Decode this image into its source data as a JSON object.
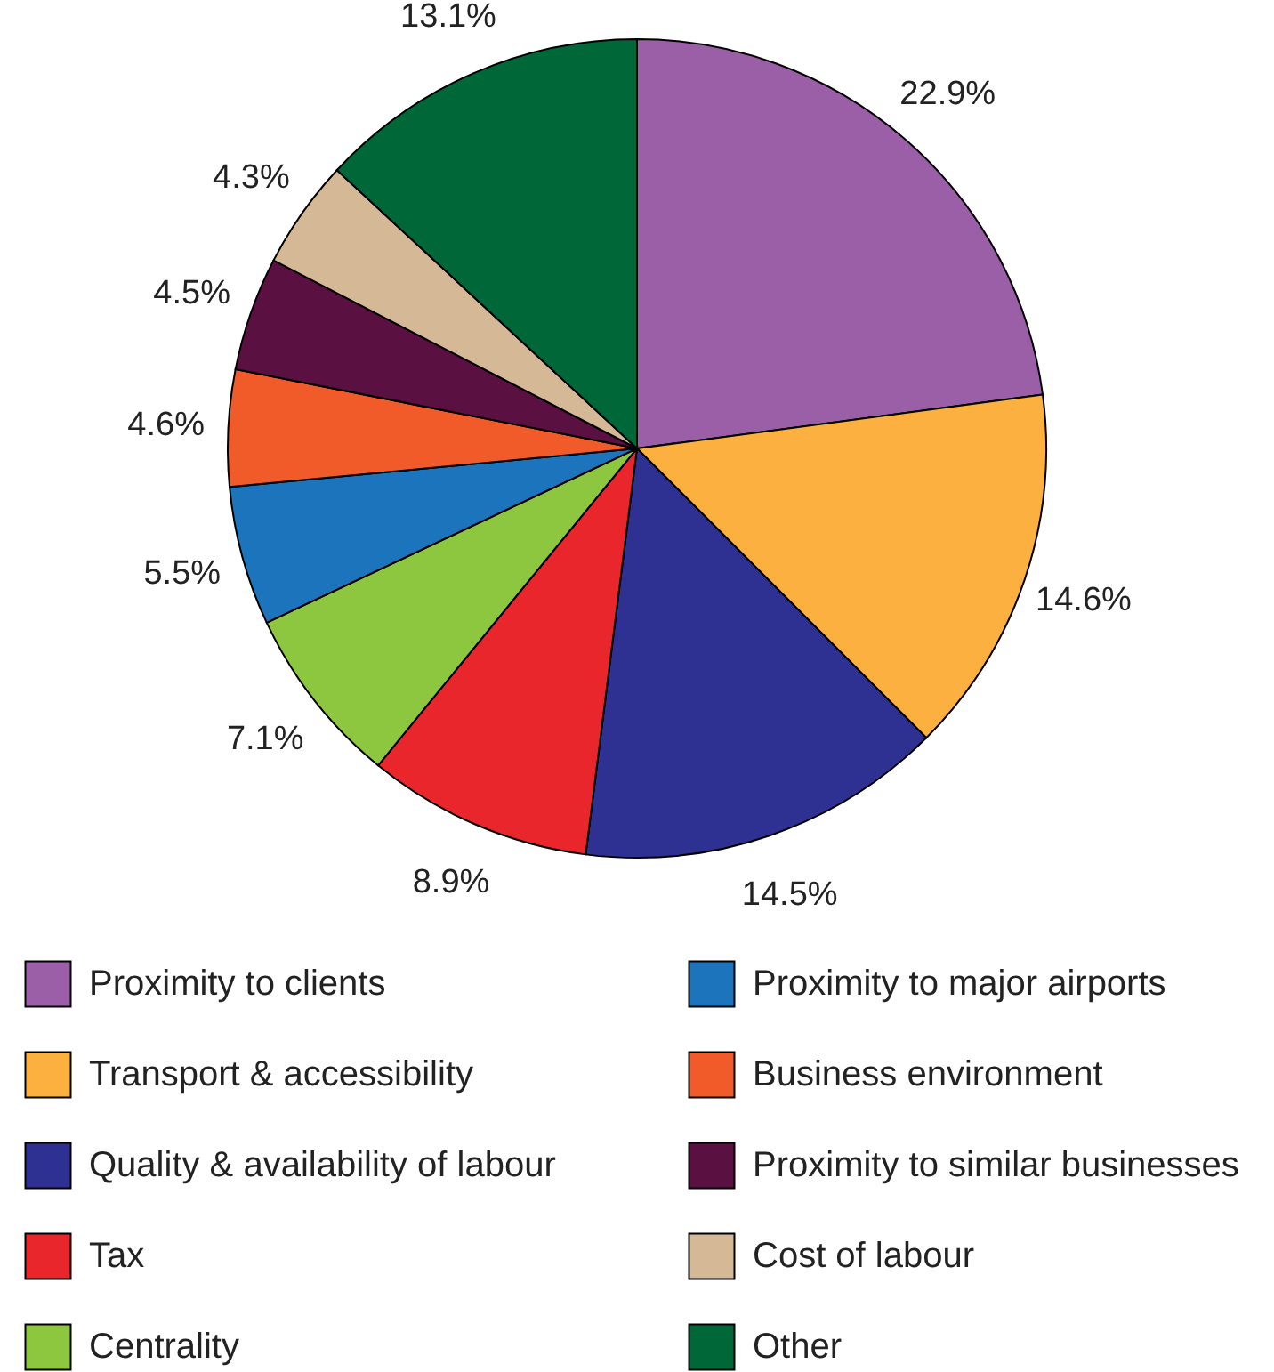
{
  "chart_data": {
    "type": "pie",
    "categories": [
      "Proximity to clients",
      "Transport & accessibility",
      "Quality & availability of labour",
      "Tax",
      "Centrality",
      "Proximity to major airports",
      "Business environment",
      "Proximity to similar businesses",
      "Cost of labour",
      "Other"
    ],
    "values": [
      22.9,
      14.6,
      14.5,
      8.9,
      7.1,
      5.5,
      4.6,
      4.5,
      4.3,
      13.1
    ],
    "value_labels": [
      "22.9%",
      "14.6%",
      "14.5%",
      "8.9%",
      "7.1%",
      "5.5%",
      "4.6%",
      "4.5%",
      "4.3%",
      "13.1%"
    ],
    "colors": [
      "#9b5fa8",
      "#fbb040",
      "#2e3192",
      "#e8262b",
      "#8dc63f",
      "#1c75bc",
      "#f15a29",
      "#5a1040",
      "#d5b895",
      "#006838"
    ],
    "legend": "bottom"
  }
}
